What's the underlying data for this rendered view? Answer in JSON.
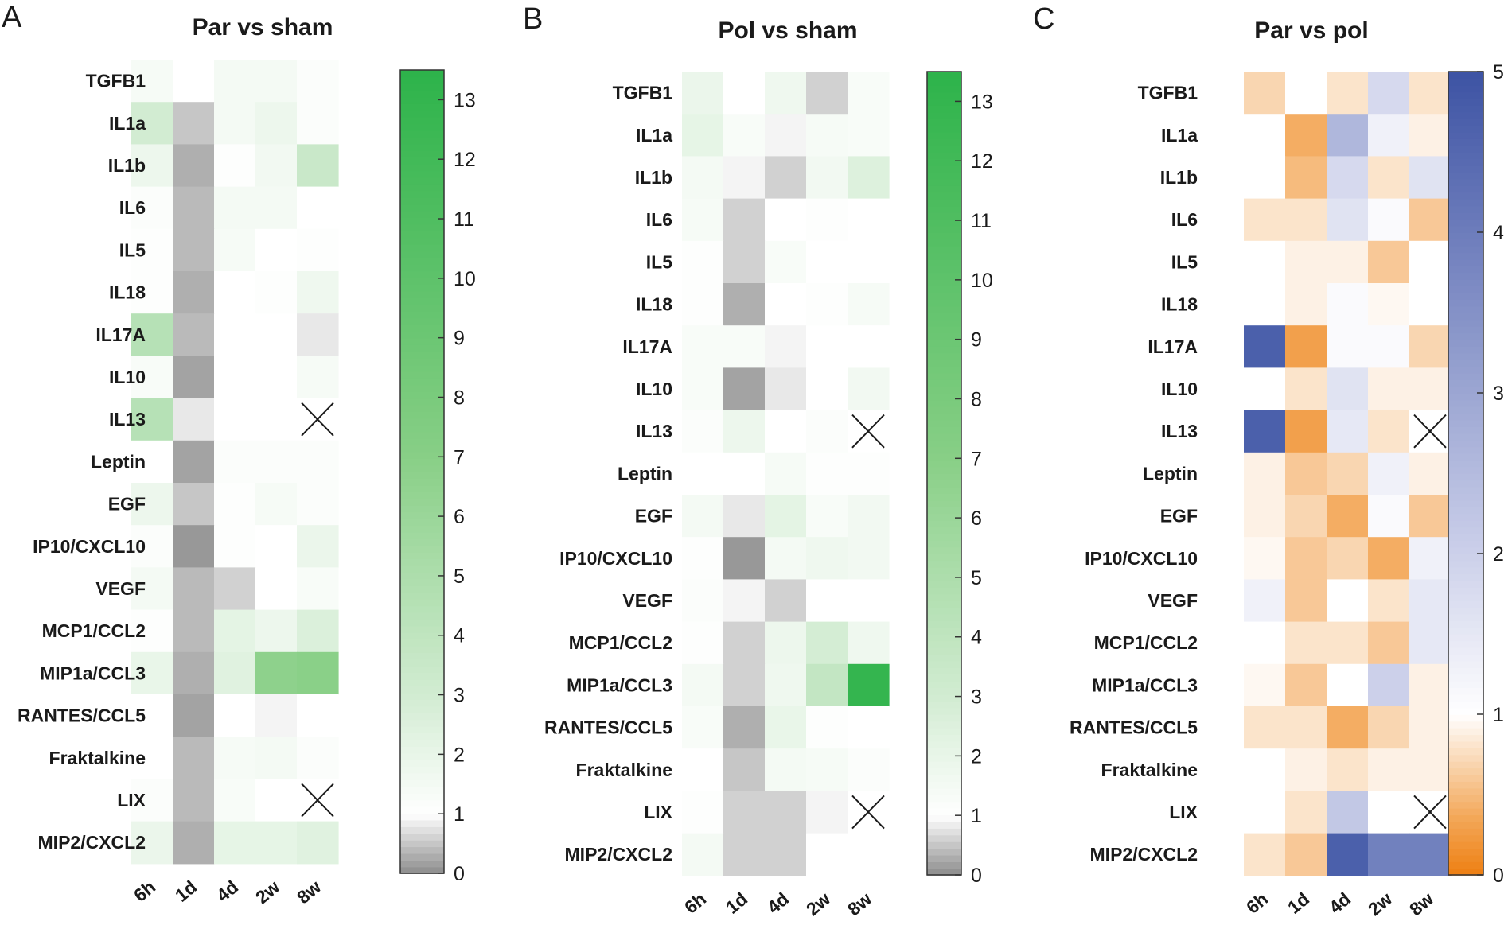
{
  "chart_data": [
    {
      "type": "heatmap",
      "panel_label": "A",
      "title": "Par vs sham",
      "colormap": "green",
      "x_labels": [
        "6h",
        "1d",
        "4d",
        "2w",
        "8w"
      ],
      "y_labels": [
        "TGFB1",
        "IL1a",
        "IL1b",
        "IL6",
        "IL5",
        "IL18",
        "IL17A",
        "IL10",
        "IL13",
        "Leptin",
        "EGF",
        "IP10/CXCL10",
        "VEGF",
        "MCP1/CCL2",
        "MIP1a/CCL3",
        "RANTES/CCL5",
        "Fraktalkine",
        "LIX",
        "MIP2/CXCL2"
      ],
      "values": [
        [
          1.4,
          1.0,
          1.5,
          1.5,
          1.2
        ],
        [
          3.0,
          0.5,
          1.5,
          1.8,
          1.2
        ],
        [
          1.8,
          0.3,
          1.1,
          1.6,
          3.5
        ],
        [
          1.2,
          0.4,
          1.5,
          1.5,
          1.0
        ],
        [
          1.1,
          0.4,
          1.4,
          1.0,
          1.1
        ],
        [
          1.1,
          0.3,
          1.0,
          1.1,
          1.7
        ],
        [
          4.5,
          0.4,
          1.0,
          1.0,
          0.8
        ],
        [
          1.3,
          0.2,
          1.0,
          1.0,
          1.4
        ],
        [
          4.5,
          0.8,
          1.0,
          1.0,
          null
        ],
        [
          1.0,
          0.2,
          1.2,
          1.2,
          1.2
        ],
        [
          1.8,
          0.5,
          1.1,
          1.4,
          1.2
        ],
        [
          1.2,
          0.1,
          1.1,
          1.0,
          1.9
        ],
        [
          1.5,
          0.4,
          0.6,
          1.0,
          1.3
        ],
        [
          1.1,
          0.4,
          2.2,
          1.8,
          2.6
        ],
        [
          2.0,
          0.3,
          2.4,
          6.7,
          6.9
        ],
        [
          1.0,
          0.2,
          1.0,
          0.9,
          1.0
        ],
        [
          1.0,
          0.4,
          1.4,
          1.5,
          1.2
        ],
        [
          1.2,
          0.4,
          1.3,
          1.0,
          null
        ],
        [
          1.9,
          0.3,
          2.1,
          2.1,
          2.4
        ]
      ],
      "missing": [
        [
          "IL13",
          "8w"
        ],
        [
          "LIX",
          "8w"
        ]
      ],
      "colorbar": {
        "min": 0,
        "max": 13.5,
        "ticks": [
          0,
          1,
          2,
          3,
          4,
          5,
          6,
          7,
          8,
          9,
          10,
          11,
          12,
          13
        ]
      }
    },
    {
      "type": "heatmap",
      "panel_label": "B",
      "title": "Pol vs sham",
      "colormap": "green",
      "x_labels": [
        "6h",
        "1d",
        "4d",
        "2w",
        "8w"
      ],
      "y_labels": [
        "TGFB1",
        "IL1a",
        "IL1b",
        "IL6",
        "IL5",
        "IL18",
        "IL17A",
        "IL10",
        "IL13",
        "Leptin",
        "EGF",
        "IP10/CXCL10",
        "VEGF",
        "MCP1/CCL2",
        "MIP1a/CCL3",
        "RANTES/CCL5",
        "Fraktalkine",
        "LIX",
        "MIP2/CXCL2"
      ],
      "values": [
        [
          1.9,
          1.0,
          1.7,
          0.6,
          1.3
        ],
        [
          2.1,
          1.3,
          0.9,
          1.4,
          1.3
        ],
        [
          1.5,
          0.9,
          0.6,
          1.6,
          2.5
        ],
        [
          1.4,
          0.6,
          1.0,
          1.1,
          1.0
        ],
        [
          1.1,
          0.6,
          1.3,
          1.0,
          1.0
        ],
        [
          1.1,
          0.3,
          1.0,
          1.1,
          1.4
        ],
        [
          1.3,
          1.3,
          0.9,
          1.0,
          1.0
        ],
        [
          1.3,
          0.2,
          0.8,
          1.0,
          1.6
        ],
        [
          1.2,
          1.8,
          1.0,
          1.2,
          null
        ],
        [
          1.0,
          1.0,
          1.4,
          1.1,
          1.1
        ],
        [
          1.5,
          0.8,
          2.2,
          1.3,
          1.6
        ],
        [
          1.1,
          0.1,
          1.5,
          1.7,
          1.6
        ],
        [
          1.2,
          0.9,
          0.6,
          1.0,
          1.0
        ],
        [
          1.1,
          0.6,
          1.8,
          2.9,
          1.7
        ],
        [
          1.5,
          0.6,
          1.7,
          3.8,
          13.0
        ],
        [
          1.3,
          0.3,
          2.0,
          1.1,
          1.0
        ],
        [
          1.0,
          0.5,
          1.5,
          1.4,
          1.2
        ],
        [
          1.1,
          0.6,
          0.6,
          0.9,
          null
        ],
        [
          1.5,
          0.6,
          0.6,
          1.0,
          1.0
        ]
      ],
      "missing": [
        [
          "IL13",
          "8w"
        ],
        [
          "LIX",
          "8w"
        ]
      ],
      "colorbar": {
        "min": 0,
        "max": 13.5,
        "ticks": [
          0,
          1,
          2,
          3,
          4,
          5,
          6,
          7,
          8,
          9,
          10,
          11,
          12,
          13
        ]
      }
    },
    {
      "type": "heatmap",
      "panel_label": "C",
      "title": "Par vs pol",
      "colormap": "orange-white-blue",
      "x_labels": [
        "6h",
        "1d",
        "4d",
        "2w",
        "8w"
      ],
      "y_labels": [
        "TGFB1",
        "IL1a",
        "IL1b",
        "IL6",
        "IL5",
        "IL18",
        "IL17A",
        "IL10",
        "IL13",
        "Leptin",
        "EGF",
        "IP10/CXCL10",
        "VEGF",
        "MCP1/CCL2",
        "MIP1a/CCL3",
        "RANTES/CCL5",
        "Fraktalkine",
        "LIX",
        "MIP2/CXCL2"
      ],
      "values": [
        [
          0.7,
          1.0,
          0.8,
          1.8,
          0.8
        ],
        [
          1.0,
          0.4,
          2.6,
          1.3,
          0.9
        ],
        [
          1.0,
          0.5,
          1.8,
          0.8,
          1.6
        ],
        [
          0.8,
          0.8,
          1.6,
          1.1,
          0.6
        ],
        [
          1.0,
          0.9,
          0.9,
          0.6,
          1.0
        ],
        [
          1.0,
          0.9,
          1.1,
          0.95,
          1.0
        ],
        [
          4.7,
          0.3,
          1.1,
          1.1,
          0.7
        ],
        [
          1.0,
          0.8,
          1.6,
          0.9,
          0.9
        ],
        [
          4.7,
          0.3,
          1.5,
          0.8,
          null
        ],
        [
          0.9,
          0.6,
          0.7,
          1.3,
          0.9
        ],
        [
          0.9,
          0.7,
          0.4,
          1.1,
          0.6
        ],
        [
          0.95,
          0.6,
          0.7,
          0.4,
          1.3
        ],
        [
          1.3,
          0.6,
          1.0,
          0.8,
          1.5
        ],
        [
          1.0,
          0.8,
          0.8,
          0.6,
          1.5
        ],
        [
          0.95,
          0.6,
          1.0,
          2.0,
          0.9
        ],
        [
          0.8,
          0.8,
          0.4,
          0.7,
          0.9
        ],
        [
          1.0,
          0.9,
          0.8,
          0.9,
          0.9
        ],
        [
          1.0,
          0.8,
          2.2,
          1.0,
          null
        ],
        [
          0.8,
          0.6,
          4.7,
          3.9,
          3.9
        ]
      ],
      "missing": [
        [
          "IL13",
          "8w"
        ],
        [
          "LIX",
          "8w"
        ]
      ],
      "colorbar": {
        "min": 0,
        "max": 5,
        "ticks": [
          0,
          1,
          2,
          3,
          4,
          5
        ]
      }
    }
  ]
}
